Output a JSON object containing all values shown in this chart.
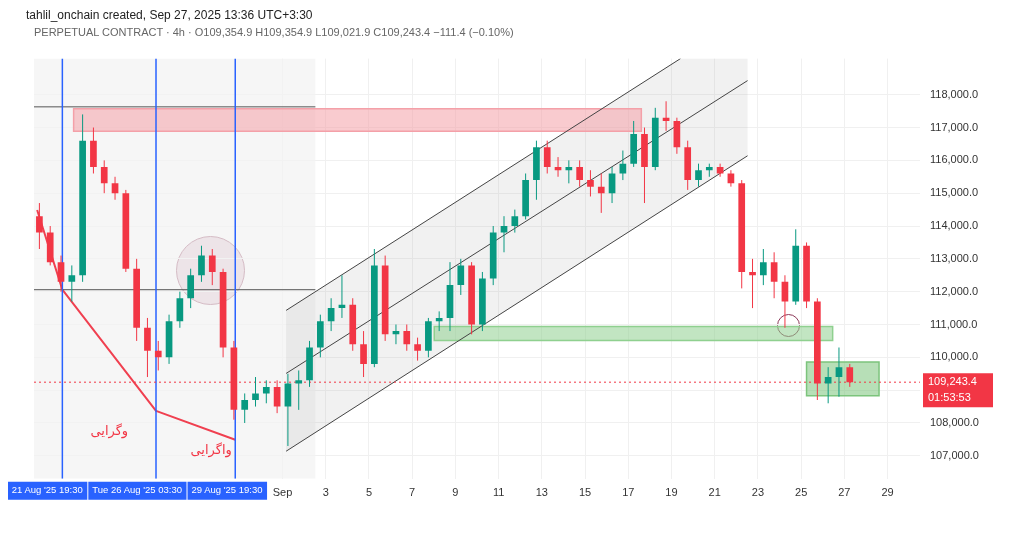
{
  "chart_data": {
    "type": "candlestick",
    "title": "tahlil_onchain created, Sep 27, 2025 13:36 UTC+3:30",
    "subtitle": "PERPETUAL CONTRACT · 4h · O109,354.9 H109,354.9 L109,021.9 C109,243.4 −111.4 (−0.10%)",
    "xlim": [
      "2025-08-20T12:00",
      "2025-09-30T12:00"
    ],
    "xticks": [
      {
        "value": "2025-09-01",
        "label": "Sep"
      },
      {
        "value": "2025-09-03",
        "label": "3"
      },
      {
        "value": "2025-09-05",
        "label": "5"
      },
      {
        "value": "2025-09-07",
        "label": "7"
      },
      {
        "value": "2025-09-09",
        "label": "9"
      },
      {
        "value": "2025-09-11",
        "label": "11"
      },
      {
        "value": "2025-09-13",
        "label": "13"
      },
      {
        "value": "2025-09-15",
        "label": "15"
      },
      {
        "value": "2025-09-17",
        "label": "17"
      },
      {
        "value": "2025-09-19",
        "label": "19"
      },
      {
        "value": "2025-09-21",
        "label": "21"
      },
      {
        "value": "2025-09-23",
        "label": "23"
      },
      {
        "value": "2025-09-25",
        "label": "25"
      },
      {
        "value": "2025-09-27",
        "label": "27"
      },
      {
        "value": "2025-09-29",
        "label": "29"
      }
    ],
    "ylim": [
      106300,
      119100
    ],
    "yticks": [
      {
        "value": 107000,
        "label": "107,000.0"
      },
      {
        "value": 108000,
        "label": "108,000.0"
      },
      {
        "value": 109000,
        "label": null
      },
      {
        "value": 110000,
        "label": "110,000.0"
      },
      {
        "value": 111000,
        "label": "111,000.0"
      },
      {
        "value": 112000,
        "label": "112,000.0"
      },
      {
        "value": 113000,
        "label": "113,000.0"
      },
      {
        "value": 114000,
        "label": "114,000.0"
      },
      {
        "value": 115000,
        "label": "115,000.0"
      },
      {
        "value": 116000,
        "label": "116,000.0"
      },
      {
        "value": 117000,
        "label": "117,000.0"
      },
      {
        "value": 118000,
        "label": "118,000.0"
      }
    ],
    "grid": true,
    "legend": false,
    "series": [
      {
        "x": [
          "2025-08-20T18:00",
          "2025-08-21T06:00",
          "2025-08-21T18:00",
          "2025-08-22T06:00",
          "2025-08-22T18:00",
          "2025-08-23T06:00",
          "2025-08-23T18:00",
          "2025-08-24T06:00",
          "2025-08-24T18:00",
          "2025-08-25T06:00",
          "2025-08-25T18:00",
          "2025-08-26T06:00",
          "2025-08-26T18:00",
          "2025-08-27T06:00",
          "2025-08-27T18:00",
          "2025-08-28T06:00",
          "2025-08-28T18:00",
          "2025-08-29T06:00",
          "2025-08-29T18:00",
          "2025-08-30T06:00",
          "2025-08-30T18:00",
          "2025-08-31T06:00",
          "2025-08-31T18:00",
          "2025-09-01T06:00",
          "2025-09-01T18:00",
          "2025-09-02T06:00",
          "2025-09-02T18:00",
          "2025-09-03T06:00",
          "2025-09-03T18:00",
          "2025-09-04T06:00",
          "2025-09-04T18:00",
          "2025-09-05T06:00",
          "2025-09-05T18:00",
          "2025-09-06T06:00",
          "2025-09-06T18:00",
          "2025-09-07T06:00",
          "2025-09-07T18:00",
          "2025-09-08T06:00",
          "2025-09-08T18:00",
          "2025-09-09T06:00",
          "2025-09-09T18:00",
          "2025-09-10T06:00",
          "2025-09-10T18:00",
          "2025-09-11T06:00",
          "2025-09-11T18:00",
          "2025-09-12T06:00",
          "2025-09-12T18:00",
          "2025-09-13T06:00",
          "2025-09-13T18:00",
          "2025-09-14T06:00",
          "2025-09-14T18:00",
          "2025-09-15T06:00",
          "2025-09-15T18:00",
          "2025-09-16T06:00",
          "2025-09-16T18:00",
          "2025-09-17T06:00",
          "2025-09-17T18:00",
          "2025-09-18T06:00",
          "2025-09-18T18:00",
          "2025-09-19T06:00",
          "2025-09-19T18:00",
          "2025-09-20T06:00",
          "2025-09-20T18:00",
          "2025-09-21T06:00",
          "2025-09-21T18:00",
          "2025-09-22T06:00",
          "2025-09-22T18:00",
          "2025-09-23T06:00",
          "2025-09-23T18:00",
          "2025-09-24T06:00",
          "2025-09-24T18:00",
          "2025-09-25T06:00",
          "2025-09-25T18:00",
          "2025-09-26T06:00",
          "2025-09-26T18:00",
          "2025-09-27T06:00"
        ],
        "ohlc": [
          [
            114300,
            114700,
            113300,
            113800
          ],
          [
            113800,
            114000,
            112800,
            112900
          ],
          [
            112900,
            113100,
            112000,
            112300
          ],
          [
            112300,
            112800,
            111700,
            112500
          ],
          [
            112500,
            117400,
            112300,
            116600
          ],
          [
            116600,
            117000,
            115600,
            115800
          ],
          [
            115800,
            116000,
            115000,
            115300
          ],
          [
            115300,
            115500,
            114800,
            115000
          ],
          [
            115000,
            115100,
            112600,
            112700
          ],
          [
            112700,
            113000,
            110500,
            110900
          ],
          [
            110900,
            111200,
            109400,
            110200
          ],
          [
            110200,
            110500,
            109600,
            110000
          ],
          [
            110000,
            111300,
            109800,
            111100
          ],
          [
            111100,
            112000,
            110900,
            111800
          ],
          [
            111800,
            112700,
            111500,
            112500
          ],
          [
            112500,
            113400,
            112300,
            113100
          ],
          [
            113100,
            113300,
            112200,
            112600
          ],
          [
            112600,
            112700,
            110000,
            110300
          ],
          [
            110300,
            110500,
            108100,
            108400
          ],
          [
            108400,
            108900,
            108000,
            108700
          ],
          [
            108700,
            109400,
            108500,
            108900
          ],
          [
            108900,
            109300,
            108600,
            109100
          ],
          [
            109100,
            109300,
            108300,
            108500
          ],
          [
            108500,
            109500,
            107300,
            109200
          ],
          [
            109200,
            109600,
            108400,
            109300
          ],
          [
            109300,
            110500,
            109100,
            110300
          ],
          [
            110300,
            111300,
            110000,
            111100
          ],
          [
            111100,
            111800,
            110800,
            111500
          ],
          [
            111500,
            112500,
            111200,
            111600
          ],
          [
            111600,
            111800,
            110200,
            110400
          ],
          [
            110400,
            110800,
            109400,
            109800
          ],
          [
            109800,
            113300,
            109700,
            112800
          ],
          [
            112800,
            113100,
            110500,
            110700
          ],
          [
            110700,
            111000,
            110400,
            110800
          ],
          [
            110800,
            111000,
            110200,
            110400
          ],
          [
            110400,
            110600,
            109900,
            110200
          ],
          [
            110200,
            111200,
            110000,
            111100
          ],
          [
            111100,
            111400,
            110800,
            111200
          ],
          [
            111200,
            112900,
            110800,
            112200
          ],
          [
            112200,
            113000,
            111900,
            112800
          ],
          [
            112800,
            112900,
            110700,
            111000
          ],
          [
            111000,
            112600,
            110800,
            112400
          ],
          [
            112400,
            114000,
            112200,
            113800
          ],
          [
            113800,
            114300,
            113200,
            114000
          ],
          [
            114000,
            114500,
            113800,
            114300
          ],
          [
            114300,
            115600,
            114200,
            115400
          ],
          [
            115400,
            116600,
            114800,
            116400
          ],
          [
            116400,
            116600,
            115600,
            115800
          ],
          [
            115800,
            116100,
            115500,
            115700
          ],
          [
            115700,
            116000,
            115300,
            115800
          ],
          [
            115800,
            116000,
            115200,
            115400
          ],
          [
            115400,
            115700,
            114900,
            115200
          ],
          [
            115200,
            115600,
            114400,
            115000
          ],
          [
            115000,
            115800,
            114700,
            115600
          ],
          [
            115600,
            116300,
            115400,
            115900
          ],
          [
            115900,
            117200,
            115800,
            116800
          ],
          [
            116800,
            117000,
            114700,
            115800
          ],
          [
            115800,
            117600,
            115700,
            117300
          ],
          [
            117300,
            117800,
            116900,
            117200
          ],
          [
            117200,
            117300,
            116200,
            116400
          ],
          [
            116400,
            116600,
            115100,
            115400
          ],
          [
            115400,
            115900,
            115200,
            115700
          ],
          [
            115700,
            115900,
            115500,
            115800
          ],
          [
            115800,
            115900,
            115500,
            115600
          ],
          [
            115600,
            115700,
            115200,
            115300
          ],
          [
            115300,
            115400,
            112100,
            112600
          ],
          [
            112600,
            113000,
            111500,
            112500
          ],
          [
            112500,
            113300,
            112200,
            112900
          ],
          [
            112900,
            113200,
            111800,
            112300
          ],
          [
            112300,
            112500,
            110900,
            111700
          ],
          [
            111700,
            113900,
            111600,
            113400
          ],
          [
            113400,
            113500,
            111500,
            111700
          ],
          [
            111700,
            111800,
            108700,
            109200
          ],
          [
            109200,
            109700,
            108600,
            109400
          ],
          [
            109400,
            110300,
            108800,
            109700
          ],
          [
            109700,
            109800,
            109100,
            109243.4
          ]
        ],
        "colors": [
          "#f23645",
          "#f23645",
          "#f23645",
          "#089981",
          "#089981",
          "#f23645",
          "#f23645",
          "#f23645",
          "#f23645",
          "#f23645",
          "#f23645",
          "#f23645",
          "#089981",
          "#089981",
          "#089981",
          "#089981",
          "#f23645",
          "#f23645",
          "#f23645",
          "#089981",
          "#089981",
          "#089981",
          "#f23645",
          "#089981",
          "#089981",
          "#089981",
          "#089981",
          "#089981",
          "#089981",
          "#f23645",
          "#f23645",
          "#089981",
          "#f23645",
          "#089981",
          "#f23645",
          "#f23645",
          "#089981",
          "#089981",
          "#089981",
          "#089981",
          "#f23645",
          "#089981",
          "#089981",
          "#089981",
          "#089981",
          "#089981",
          "#089981",
          "#f23645",
          "#f23645",
          "#089981",
          "#f23645",
          "#f23645",
          "#f23645",
          "#089981",
          "#089981",
          "#089981",
          "#f23645",
          "#089981",
          "#f23645",
          "#f23645",
          "#f23645",
          "#089981",
          "#089981",
          "#f23645",
          "#f23645",
          "#f23645",
          "#f23645",
          "#089981",
          "#f23645",
          "#f23645",
          "#089981",
          "#f23645",
          "#f23645",
          "#089981",
          "#089981",
          "#f23645"
        ]
      },
      {
        "type": "area",
        "x": [
          "2025-08-22T08:00",
          "2025-09-17T14:30",
          "2025-09-17T14:30",
          "2025-08-22T08:00",
          "2025-08-22T08:00"
        ],
        "values": [
          117570,
          117570,
          116890,
          116890,
          117570
        ],
        "color": "#f4a0a8"
      },
      {
        "type": "area",
        "x": [
          "2025-09-08T00:30",
          "2025-09-26T11:00",
          "2025-09-26T11:00",
          "2025-09-08T00:30",
          "2025-09-08T00:30"
        ],
        "values": [
          110940,
          110940,
          110510,
          110510,
          110940
        ],
        "color": "#8fd08f"
      },
      {
        "type": "area",
        "x": [
          "2025-09-25T06:00",
          "2025-09-28T14:30",
          "2025-09-28T14:30",
          "2025-09-25T06:00",
          "2025-09-25T06:00"
        ],
        "values": [
          109860,
          109860,
          108830,
          108830,
          109860
        ],
        "color": "#7cc47c"
      },
      {
        "type": "line",
        "x": [
          "2025-09-01T04:00",
          "2025-09-19T10:00",
          "2025-09-22T12:30"
        ],
        "values": [
          109510,
          117130,
          118430
        ],
        "lower": [
          107140,
          114830,
          116140
        ],
        "upper": [
          111430,
          119100,
          119100
        ],
        "color": "#444444"
      },
      {
        "type": "line",
        "x": [
          "2025-09-01T04:00",
          "2025-09-19T10:00"
        ],
        "values": [
          111430,
          119100
        ],
        "color": "#444444"
      },
      {
        "type": "line",
        "x": [
          "2025-09-01T04:00",
          "2025-09-22T12:30"
        ],
        "values": [
          107140,
          116140
        ],
        "color": "#444444"
      },
      {
        "type": "line",
        "x": [
          "2025-08-20T12:00",
          "2025-09-02T12:30"
        ],
        "values": [
          117630,
          117630
        ],
        "color": "#555555"
      },
      {
        "type": "line",
        "x": [
          "2025-08-20T12:00",
          "2025-09-02T12:30"
        ],
        "values": [
          112060,
          112060
        ],
        "color": "#555555"
      },
      {
        "type": "line",
        "x": [
          "2025-08-20T15:30",
          "2025-08-21T19:30",
          "2025-08-26T03:30",
          "2025-08-29T19:30"
        ],
        "values": [
          114490,
          112060,
          108370,
          107490
        ],
        "color": "#f04050"
      }
    ],
    "bands": [
      {
        "axis": "x",
        "from": "2025-08-20T12:00",
        "to": "2025-09-02T12:30",
        "color": "#f2f2f2"
      }
    ],
    "ref_lines": [
      {
        "axis": "x",
        "value": "2025-08-21T19:30",
        "label": "21 Aug '25 19:30",
        "color": "#2962ff"
      },
      {
        "axis": "x",
        "value": "2025-08-26T03:30",
        "label": "Tue 26 Aug '25 03:30",
        "color": "#2962ff"
      },
      {
        "axis": "x",
        "value": "2025-08-29T19:30",
        "label": "29 Aug '25 19:30",
        "color": "#2962ff"
      },
      {
        "axis": "y",
        "value": 109243.4,
        "label": "109,243.4",
        "color": "#f23645",
        "line_style": "dotted"
      }
    ],
    "annotations": [
      "01:53:53",
      "وگرایی",
      "واگرایی"
    ]
  }
}
